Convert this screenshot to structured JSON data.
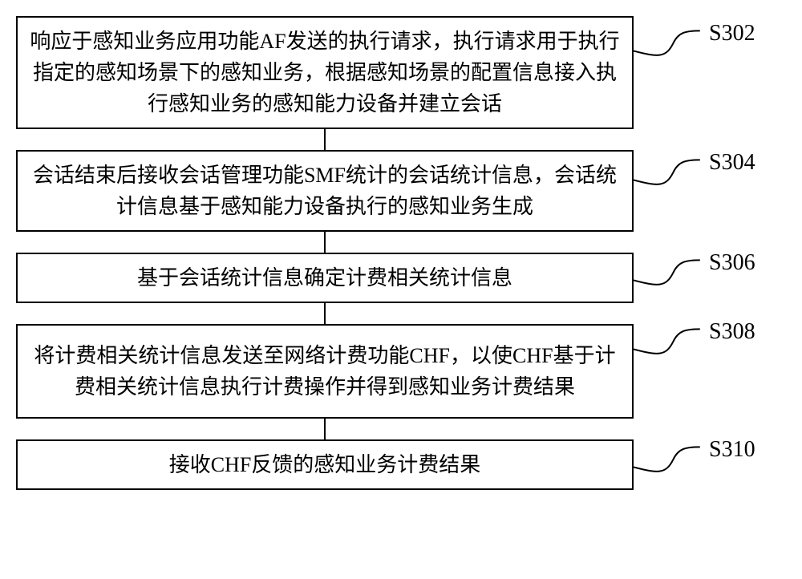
{
  "diagram": {
    "type": "flowchart",
    "box_width_main": 770,
    "label_col_width": 180,
    "box_border_color": "#000000",
    "box_border_width": 2,
    "box_background": "#ffffff",
    "font_size_box": 26,
    "font_size_label": 28,
    "font_family_box": "SimSun",
    "font_family_label": "Times New Roman",
    "connector_height": 26,
    "callout_width": 90,
    "callout_height": 36,
    "steps": [
      {
        "id": "s302",
        "label": "S302",
        "text": "响应于感知业务应用功能AF发送的执行请求，执行请求用于执行指定的感知场景下的感知业务，根据感知场景的配置信息接入执行感知业务的感知能力设备并建立会话",
        "height": 118
      },
      {
        "id": "s304",
        "label": "S304",
        "text": "会话结束后接收会话管理功能SMF统计的会话统计信息，会话统计信息基于感知能力设备执行的感知业务生成",
        "height": 90
      },
      {
        "id": "s306",
        "label": "S306",
        "text": "基于会话统计信息确定计费相关统计信息",
        "height": 58
      },
      {
        "id": "s308",
        "label": "S308",
        "text": "将计费相关统计信息发送至网络计费功能CHF，以使CHF基于计费相关统计信息执行计费操作并得到感知业务计费结果",
        "height": 118
      },
      {
        "id": "s310",
        "label": "S310",
        "text": "接收CHF反馈的感知业务计费结果",
        "height": 58
      }
    ]
  }
}
